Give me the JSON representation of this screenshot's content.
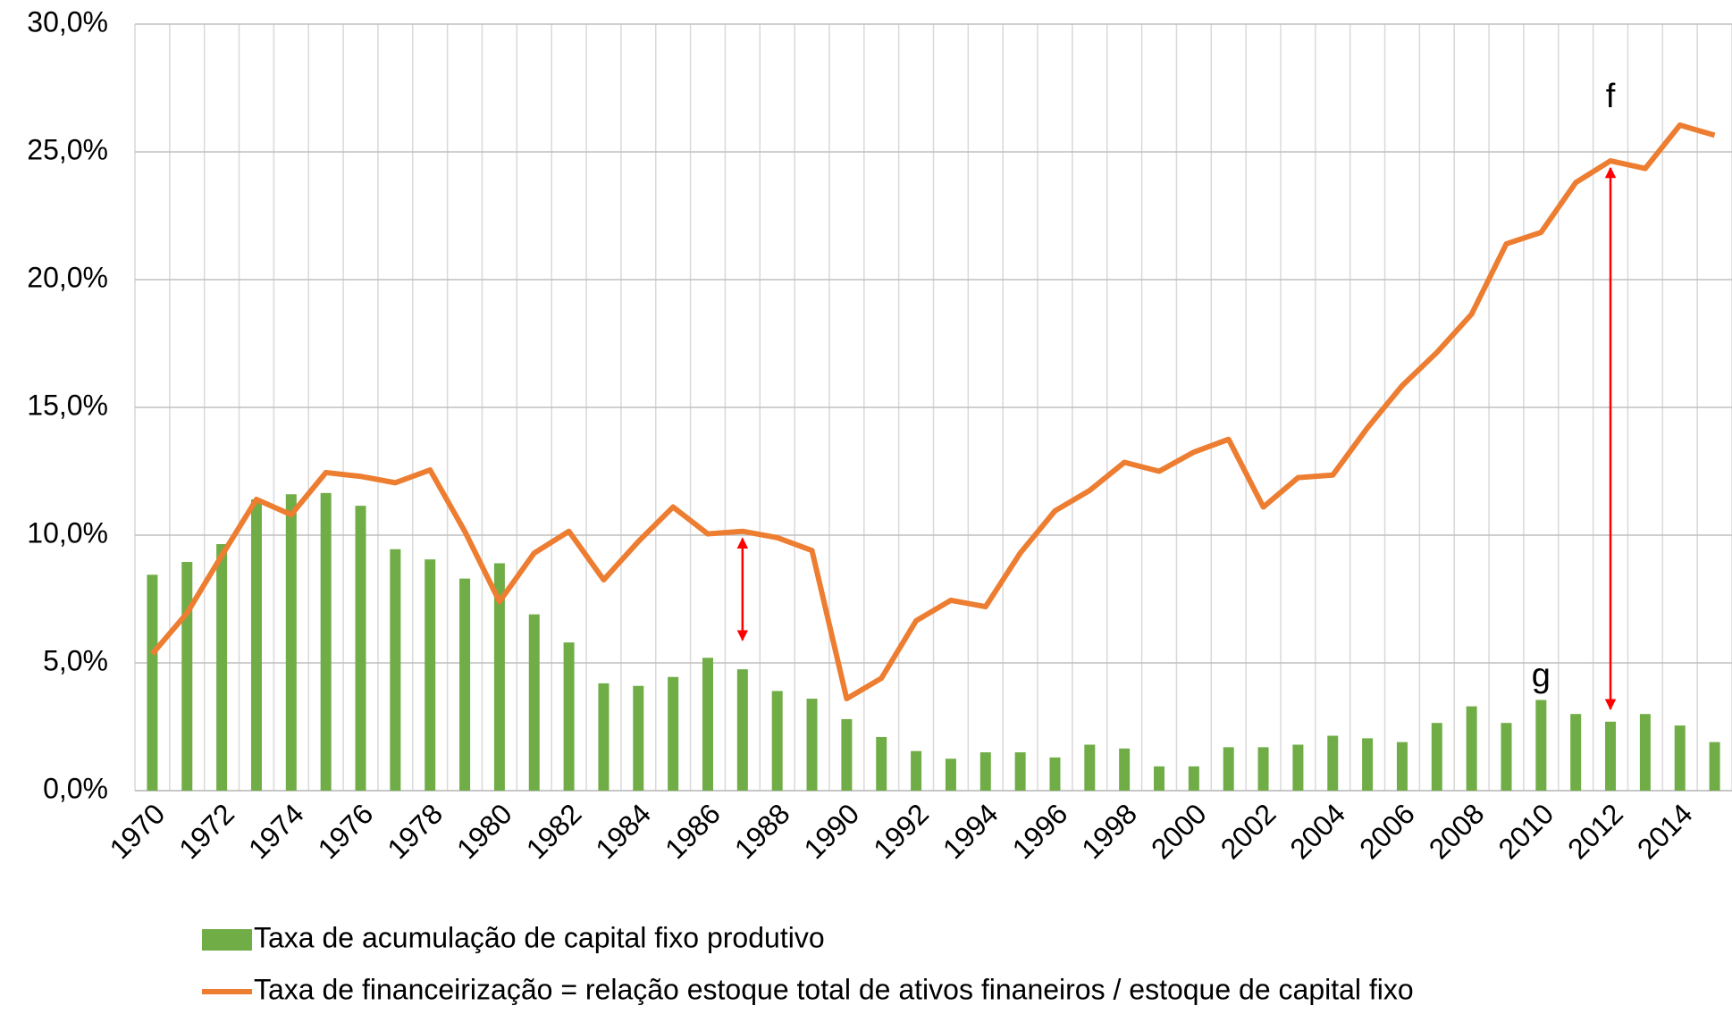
{
  "chart_data": {
    "type": "bar-line",
    "categories": [
      "1970",
      null,
      "1972",
      null,
      "1974",
      null,
      "1976",
      null,
      "1978",
      null,
      "1980",
      null,
      "1982",
      null,
      "1984",
      null,
      "1986",
      null,
      "1988",
      null,
      "1990",
      null,
      "1992",
      null,
      "1994",
      null,
      "1996",
      null,
      "1998",
      null,
      "2000",
      null,
      "2002",
      null,
      "2004",
      null,
      "2006",
      null,
      "2008",
      null,
      "2010",
      null,
      "2012",
      null,
      "2014",
      null
    ],
    "series": [
      {
        "name": "Taxa de acumulação de capital fixo produtivo",
        "type": "bar",
        "color": "#70ad47",
        "values": [
          8.45,
          8.95,
          9.65,
          11.4,
          11.6,
          11.65,
          11.15,
          9.45,
          9.05,
          8.3,
          8.9,
          6.9,
          5.8,
          4.2,
          4.1,
          4.45,
          5.2,
          4.75,
          3.9,
          3.6,
          2.8,
          2.1,
          1.55,
          1.25,
          1.5,
          1.5,
          1.3,
          1.8,
          1.65,
          0.95,
          0.95,
          1.7,
          1.7,
          1.8,
          2.15,
          2.05,
          1.9,
          2.65,
          3.3,
          2.65,
          3.55,
          3.0,
          2.7,
          3.0,
          2.55,
          1.9
        ]
      },
      {
        "name": "Taxa de financeirização = relação estoque total de ativos finaneiros / estoque de capital fixo",
        "type": "line",
        "color": "#ed7d31",
        "values": [
          5.35,
          6.95,
          9.2,
          11.4,
          10.8,
          12.45,
          12.3,
          12.05,
          12.55,
          10.15,
          7.4,
          9.3,
          10.15,
          8.25,
          9.75,
          11.1,
          10.05,
          10.15,
          9.9,
          9.4,
          3.6,
          4.4,
          6.65,
          7.45,
          7.2,
          9.3,
          10.95,
          11.75,
          12.85,
          12.5,
          13.25,
          13.75,
          11.1,
          12.25,
          12.35,
          14.2,
          15.85,
          17.15,
          18.65,
          21.4,
          21.85,
          23.8,
          24.65,
          24.35,
          26.05,
          25.65
        ]
      }
    ],
    "ylim": [
      0,
      30
    ],
    "yticks": [
      {
        "value": 0,
        "label": "0,0%"
      },
      {
        "value": 5,
        "label": "5,0%"
      },
      {
        "value": 10,
        "label": "10,0%"
      },
      {
        "value": 15,
        "label": "15,0%"
      },
      {
        "value": 20,
        "label": "20,0%"
      },
      {
        "value": 25,
        "label": "25,0%"
      },
      {
        "value": 30,
        "label": "30,0%"
      }
    ],
    "grid": true,
    "annotations": [
      "f",
      "g"
    ]
  }
}
